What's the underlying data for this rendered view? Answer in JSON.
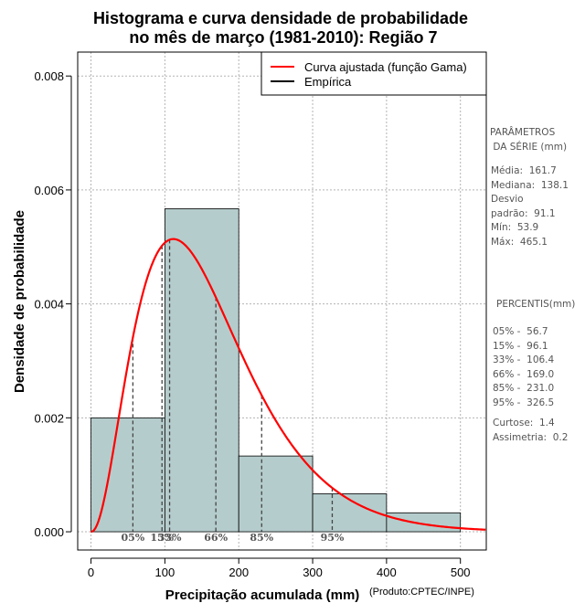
{
  "chart_data": {
    "type": "bar",
    "title_line1": "Histograma e curva densidade de probabilidade",
    "title_line2": "no mês de março (1981-2010): Região 7",
    "xlabel": "Precipitação acumulada (mm)",
    "ylabel": "Densidade de probabilidade",
    "credit": "(Produto:CPTEC/INPE)",
    "xlim": [
      -18,
      535
    ],
    "ylim": [
      -0.00032,
      0.00842
    ],
    "x_ticks": [
      0,
      100,
      200,
      300,
      400,
      500
    ],
    "x_tick_labels": [
      "0",
      "100",
      "200",
      "300",
      "400",
      "500"
    ],
    "y_ticks": [
      0.0,
      0.002,
      0.004,
      0.006,
      0.008
    ],
    "y_tick_labels": [
      "0.000",
      "0.002",
      "0.004",
      "0.006",
      "0.008"
    ],
    "grid": true,
    "histogram": {
      "bin_edges": [
        0,
        100,
        200,
        300,
        400,
        500
      ],
      "densities": [
        0.002,
        0.00567,
        0.00133,
        0.000667,
        0.000333
      ],
      "fill_color": "#b5cccc",
      "edge_color": "#000000"
    },
    "gamma_curve": {
      "name": "Curva ajustada (função Gama)",
      "color": "#ff0000",
      "shape": 3.22,
      "scale": 50.2,
      "x_max": 535
    },
    "empirical": {
      "name": "Empírica",
      "color": "#000000"
    },
    "legend_position": "top-right",
    "percentile_markers": [
      {
        "label": "05%",
        "x": 56.7
      },
      {
        "label": "15%",
        "x": 96.1
      },
      {
        "label": "33%",
        "x": 106.4
      },
      {
        "label": "66%",
        "x": 169.0
      },
      {
        "label": "85%",
        "x": 231.0
      },
      {
        "label": "95%",
        "x": 326.5
      }
    ]
  },
  "parameters": {
    "heading": "PARÂMETROS\n DA SÉRIE (mm)",
    "body": "Média:  161.7\nMediana:  138.1\nDesvio\npadrão:  91.1\nMín:  53.9\nMáx:  465.1"
  },
  "percentiles": {
    "heading": "PERCENTIS(mm)",
    "body": "05% -  56.7\n15% -  96.1\n33% -  106.4\n66% -  169.0\n85% -  231.0\n95% -  326.5"
  },
  "statistics": {
    "body": "Curtose:  1.4\nAssimetria:  0.2"
  }
}
